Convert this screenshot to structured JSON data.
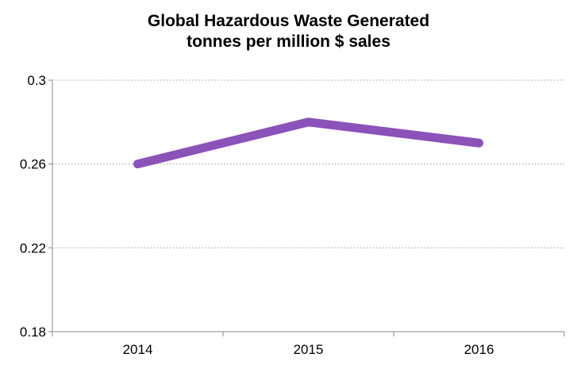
{
  "chart_data": {
    "type": "line",
    "title": "Global Hazardous Waste Generated",
    "subtitle": "tonnes per million $ sales",
    "xlabel": "",
    "ylabel": "",
    "categories": [
      "2014",
      "2015",
      "2016"
    ],
    "series": [
      {
        "values": [
          0.26,
          0.28,
          0.27
        ],
        "color": "#8B52B9"
      }
    ],
    "ylim": [
      0.18,
      0.3
    ],
    "yticks": [
      0.3,
      0.26,
      0.22,
      0.18
    ],
    "ytick_labels": [
      "0.3",
      "0.26",
      "0.22",
      "0.18"
    ],
    "grid": "horizontal-dotted",
    "legend": "none"
  }
}
